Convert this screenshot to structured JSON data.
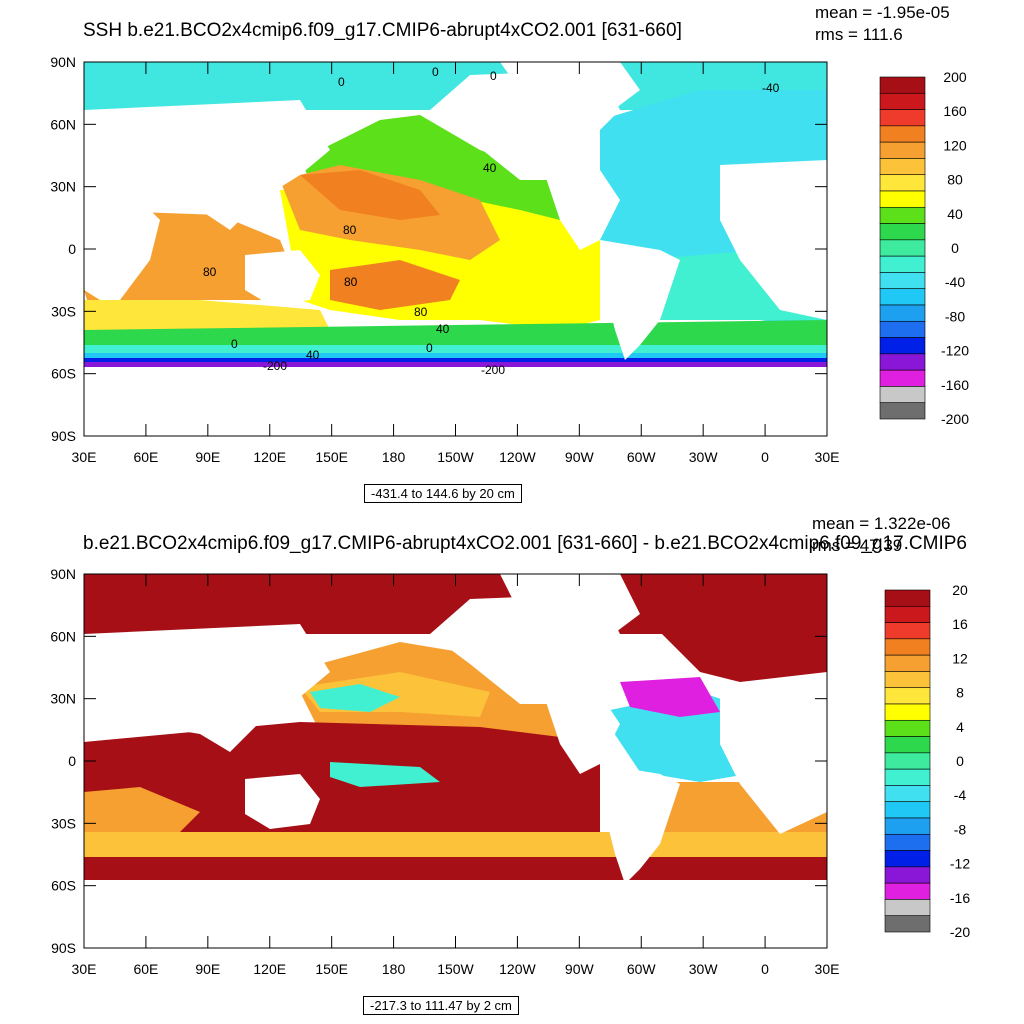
{
  "maps": [
    {
      "title": "SSH b.e21.BCO2x4cmip6.f09_g17.CMIP6-abrupt4xCO2.001 [631-660]",
      "mean": "mean = -1.95e-05",
      "rms": "rms = 111.6",
      "range": "-431.4 to 144.6 by 20 cm",
      "lat_labels": [
        "90N",
        "60N",
        "30N",
        "0",
        "30S",
        "60S",
        "90S"
      ],
      "lon_labels": [
        "30E",
        "60E",
        "90E",
        "120E",
        "150E",
        "180",
        "150W",
        "120W",
        "90W",
        "60W",
        "30W",
        "0",
        "30E"
      ],
      "colorbar_labels": [
        "200",
        "160",
        "120",
        "80",
        "40",
        "0",
        "-40",
        "-80",
        "-120",
        "-160",
        "-200"
      ],
      "colorbar_colors": [
        "#a50f15",
        "#cb181d",
        "#ef3b2c",
        "#f08020",
        "#f5a030",
        "#fbc23a",
        "#ffe63a",
        "#ffff00",
        "#5ce01a",
        "#2ed84c",
        "#3dea9e",
        "#40f0d0",
        "#40e0f0",
        "#20c8f5",
        "#1ea0f0",
        "#1e6ef0",
        "#0020e8",
        "#8a16d8",
        "#e020e0",
        "#c8c8c8",
        "#6e6e6e"
      ],
      "contour_labels": [
        "0",
        "0",
        "0",
        "-40",
        "40",
        "80",
        "80",
        "80",
        "80",
        "40",
        "0",
        "0",
        "-200",
        "40",
        "-200"
      ]
    },
    {
      "title": "b.e21.BCO2x4cmip6.f09_g17.CMIP6-abrupt4xCO2.001 [631-660] - b.e21.BCO2x4cmip6.f09_g17.CMIP6",
      "mean": "mean = 1.322e-06",
      "rms": "rms = 47.39",
      "range": "-217.3 to 111.47 by 2 cm",
      "lat_labels": [
        "90N",
        "60N",
        "30N",
        "0",
        "30S",
        "60S",
        "90S"
      ],
      "lon_labels": [
        "30E",
        "60E",
        "90E",
        "120E",
        "150E",
        "180",
        "150W",
        "120W",
        "90W",
        "60W",
        "30W",
        "0",
        "30E"
      ],
      "colorbar_labels": [
        "20",
        "16",
        "12",
        "8",
        "4",
        "0",
        "-4",
        "-8",
        "-12",
        "-16",
        "-20"
      ],
      "colorbar_colors": [
        "#a50f15",
        "#cb181d",
        "#ef3b2c",
        "#f08020",
        "#f5a030",
        "#fbc23a",
        "#ffe63a",
        "#ffff00",
        "#5ce01a",
        "#2ed84c",
        "#3dea9e",
        "#40f0d0",
        "#40e0f0",
        "#20c8f5",
        "#1ea0f0",
        "#1e6ef0",
        "#0020e8",
        "#8a16d8",
        "#e020e0",
        "#c8c8c8",
        "#6e6e6e"
      ]
    }
  ]
}
